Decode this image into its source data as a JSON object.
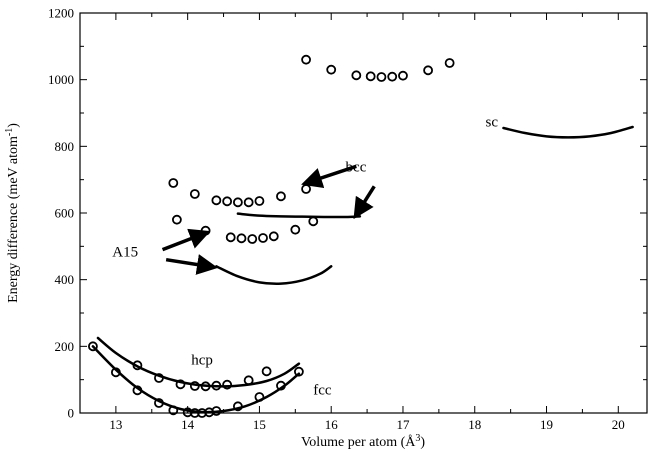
{
  "chart_data": {
    "type": "scatter",
    "title": "",
    "xlabel_main": "Volume per atom (Å",
    "xlabel_sup": "3",
    "xlabel_end": ")",
    "ylabel_main": "Energy difference (meV atom",
    "ylabel_sup": "-1",
    "ylabel_end": ")",
    "xlim": [
      12.5,
      20.4
    ],
    "ylim": [
      0,
      1200
    ],
    "xticks": [
      13,
      14,
      15,
      16,
      17,
      18,
      19,
      20
    ],
    "yticks": [
      0,
      200,
      400,
      600,
      800,
      1000,
      1200
    ],
    "grid": false,
    "legend": "none",
    "series": [
      {
        "name": "fcc",
        "points": [
          [
            12.68,
            200
          ],
          [
            13.0,
            122
          ],
          [
            13.3,
            68
          ],
          [
            13.6,
            30
          ],
          [
            13.8,
            8
          ],
          [
            14.0,
            2
          ],
          [
            14.1,
            0
          ],
          [
            14.2,
            0
          ],
          [
            14.3,
            2
          ],
          [
            14.4,
            6
          ],
          [
            14.7,
            20
          ],
          [
            15.0,
            48
          ],
          [
            15.3,
            82
          ],
          [
            15.55,
            124
          ]
        ],
        "curve": [
          [
            12.68,
            200
          ],
          [
            13.0,
            130
          ],
          [
            13.3,
            75
          ],
          [
            13.6,
            36
          ],
          [
            13.9,
            12
          ],
          [
            14.2,
            3
          ],
          [
            14.5,
            6
          ],
          [
            14.8,
            20
          ],
          [
            15.1,
            48
          ],
          [
            15.35,
            82
          ],
          [
            15.55,
            118
          ]
        ]
      },
      {
        "name": "hcp",
        "points": [
          [
            13.3,
            143
          ],
          [
            13.6,
            105
          ],
          [
            13.9,
            86
          ],
          [
            14.1,
            81
          ],
          [
            14.25,
            80
          ],
          [
            14.4,
            82
          ],
          [
            14.55,
            85
          ],
          [
            14.85,
            98
          ],
          [
            15.1,
            125
          ]
        ],
        "curve": [
          [
            12.75,
            225
          ],
          [
            13.0,
            180
          ],
          [
            13.3,
            140
          ],
          [
            13.6,
            112
          ],
          [
            13.9,
            93
          ],
          [
            14.2,
            83
          ],
          [
            14.5,
            80
          ],
          [
            14.8,
            84
          ],
          [
            15.1,
            96
          ],
          [
            15.35,
            118
          ],
          [
            15.55,
            148
          ]
        ]
      },
      {
        "name": "A15",
        "points": [
          [
            13.85,
            580
          ],
          [
            14.25,
            547
          ],
          [
            14.6,
            527
          ],
          [
            14.75,
            524
          ],
          [
            14.9,
            522
          ],
          [
            15.05,
            525
          ],
          [
            15.2,
            530
          ],
          [
            15.5,
            550
          ],
          [
            15.75,
            575
          ]
        ],
        "curve": [
          [
            14.4,
            440
          ],
          [
            14.7,
            410
          ],
          [
            15.0,
            392
          ],
          [
            15.3,
            388
          ],
          [
            15.6,
            398
          ],
          [
            15.85,
            418
          ],
          [
            16.0,
            440
          ]
        ]
      },
      {
        "name": "bcc",
        "points": [
          [
            13.8,
            690
          ],
          [
            14.1,
            657
          ],
          [
            14.4,
            638
          ],
          [
            14.55,
            635
          ],
          [
            14.7,
            632
          ],
          [
            14.85,
            632
          ],
          [
            15.0,
            636
          ],
          [
            15.3,
            650
          ],
          [
            15.65,
            672
          ]
        ],
        "curve": [
          [
            14.7,
            598
          ],
          [
            15.0,
            592
          ],
          [
            15.3,
            590
          ],
          [
            15.6,
            589
          ],
          [
            15.9,
            588
          ],
          [
            16.2,
            588
          ],
          [
            16.4,
            590
          ]
        ]
      },
      {
        "name": "sc",
        "points": [
          [
            15.65,
            1060
          ],
          [
            16.0,
            1030
          ],
          [
            16.35,
            1013
          ],
          [
            16.55,
            1010
          ],
          [
            16.7,
            1008
          ],
          [
            16.85,
            1009
          ],
          [
            17.0,
            1012
          ],
          [
            17.35,
            1028
          ],
          [
            17.65,
            1050
          ]
        ],
        "curve": [
          [
            18.4,
            855
          ],
          [
            18.7,
            840
          ],
          [
            19.0,
            830
          ],
          [
            19.3,
            827
          ],
          [
            19.6,
            830
          ],
          [
            19.9,
            840
          ],
          [
            20.2,
            858
          ]
        ]
      }
    ],
    "labels": [
      {
        "text": "fcc",
        "x": 15.75,
        "y": 55
      },
      {
        "text": "hcp",
        "x": 14.05,
        "y": 145
      },
      {
        "text": "A15",
        "x": 12.95,
        "y": 470
      },
      {
        "text": "bcc",
        "x": 16.2,
        "y": 725
      },
      {
        "text": "sc",
        "x": 18.15,
        "y": 860
      }
    ],
    "arrows": [
      {
        "from": [
          16.35,
          740
        ],
        "to": [
          15.65,
          690
        ]
      },
      {
        "from": [
          16.6,
          680
        ],
        "to": [
          16.35,
          595
        ]
      },
      {
        "from": [
          13.65,
          490
        ],
        "to": [
          14.25,
          540
        ]
      },
      {
        "from": [
          13.7,
          460
        ],
        "to": [
          14.35,
          438
        ]
      }
    ]
  }
}
